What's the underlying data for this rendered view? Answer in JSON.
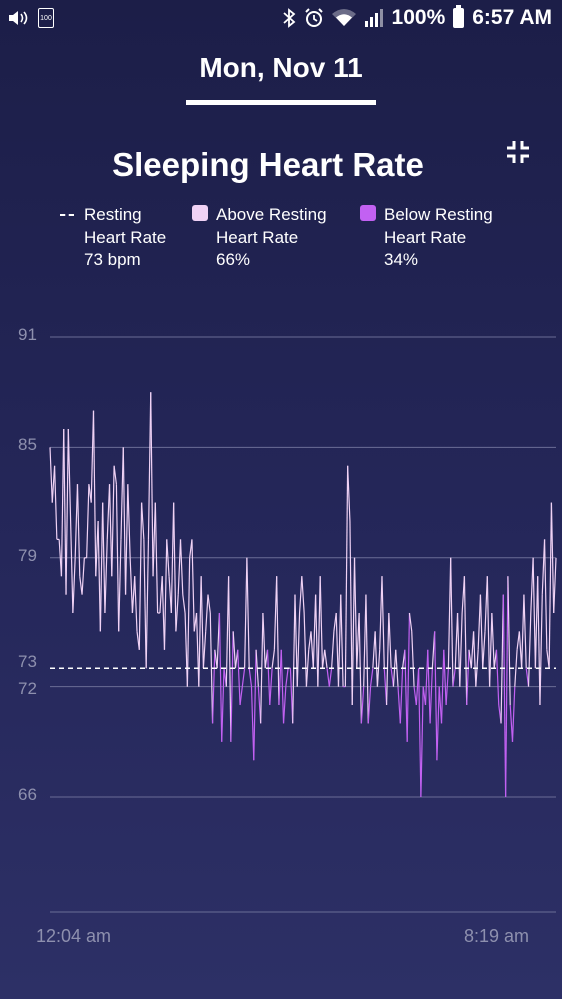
{
  "status_bar": {
    "battery_small_label": "100",
    "battery_percent": "100%",
    "time": "6:57 AM",
    "icons": [
      "volume-icon",
      "battery-saver-icon",
      "bluetooth-icon",
      "alarm-icon",
      "wifi-icon",
      "signal-icon",
      "battery-icon"
    ]
  },
  "header": {
    "date": "Mon, Nov 11"
  },
  "collapse_icon": "collapse-icon",
  "chart_data": {
    "type": "area",
    "title": "Sleeping Heart Rate",
    "legend": [
      {
        "marker": "dashed-line",
        "label_line1": "Resting",
        "label_line2": "Heart Rate",
        "value": "73 bpm"
      },
      {
        "marker": "swatch",
        "color": "#f0d2f5",
        "label_line1": "Above Resting",
        "label_line2": "Heart Rate",
        "value": "66%"
      },
      {
        "marker": "swatch",
        "color": "#c261f2",
        "label_line1": "Below Resting",
        "label_line2": "Heart Rate",
        "value": "34%"
      }
    ],
    "resting_hr": 73,
    "y_ticks": [
      {
        "value": 91,
        "label": "91"
      },
      {
        "value": 85,
        "label": "85"
      },
      {
        "value": 79,
        "label": "79"
      },
      {
        "value": 73,
        "label": "73"
      },
      {
        "value": 72,
        "label": "72"
      },
      {
        "value": 66,
        "label": "66"
      }
    ],
    "ylim": [
      60,
      91
    ],
    "x_start_label": "12:04 am",
    "x_end_label": "8:19 am",
    "colors": {
      "above": "#f0d2f5",
      "below": "#c261f2",
      "grid": "#6b6d96",
      "resting_line": "#ffffff"
    },
    "samples": [
      85,
      82,
      84,
      80,
      80,
      78,
      86,
      77,
      86,
      81,
      76,
      79,
      83,
      78,
      77,
      79,
      79,
      83,
      82,
      87,
      78,
      81,
      75,
      82,
      76,
      80,
      83,
      78,
      84,
      83,
      75,
      80,
      85,
      77,
      83,
      79,
      76,
      78,
      75,
      74,
      82,
      80,
      73,
      80,
      88,
      78,
      82,
      76,
      76,
      78,
      74,
      80,
      78,
      76,
      82,
      75,
      77,
      80,
      77,
      76,
      72,
      79,
      80,
      75,
      76,
      72,
      78,
      73,
      75,
      77,
      76,
      70,
      74,
      73,
      76,
      69,
      73,
      72,
      78,
      69,
      75,
      73,
      74,
      71,
      72,
      73,
      79,
      73,
      72,
      68,
      74,
      72,
      70,
      76,
      73,
      74,
      71,
      73,
      74,
      78,
      71,
      74,
      70,
      72,
      73,
      73,
      70,
      77,
      72,
      76,
      78,
      76,
      72,
      74,
      75,
      73,
      77,
      72,
      78,
      73,
      74,
      73,
      72,
      73,
      75,
      76,
      72,
      77,
      72,
      72,
      84,
      81,
      71,
      79,
      73,
      76,
      70,
      72,
      77,
      70,
      72,
      73,
      75,
      72,
      74,
      78,
      73,
      71,
      76,
      73,
      72,
      74,
      72,
      70,
      73,
      74,
      69,
      76,
      75,
      72,
      71,
      73,
      66,
      72,
      71,
      74,
      70,
      73,
      75,
      68,
      72,
      70,
      74,
      71,
      73,
      79,
      72,
      73,
      76,
      72,
      76,
      78,
      71,
      74,
      73,
      75,
      72,
      74,
      77,
      73,
      75,
      78,
      72,
      76,
      73,
      74,
      71,
      70,
      77,
      66,
      78,
      71,
      69,
      72,
      74,
      75,
      73,
      77,
      73,
      72,
      76,
      79,
      73,
      78,
      71,
      77,
      80,
      74,
      73,
      82,
      76,
      79
    ],
    "above_pct": 66,
    "below_pct": 34
  }
}
